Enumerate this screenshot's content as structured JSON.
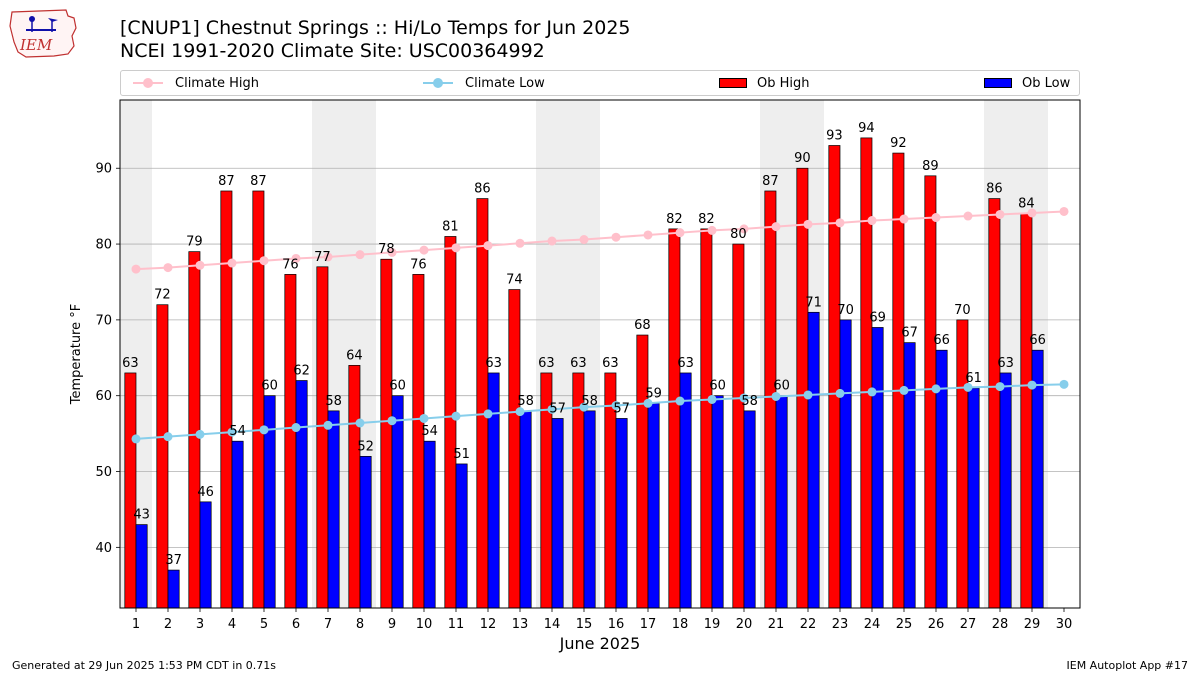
{
  "header": {
    "logo_text": "IEM",
    "title_line1": "[CNUP1] Chestnut Springs :: Hi/Lo Temps for Jun 2025",
    "title_line2": "NCEI 1991-2020 Climate Site: USC00364992"
  },
  "footer": {
    "generated": "Generated at 29 Jun 2025 1:53 PM CDT in 0.71s",
    "app": "IEM Autoplot App #17"
  },
  "colors": {
    "climate_high": "#ffc0cb",
    "climate_low": "#87ceeb",
    "ob_high": "#ff0000",
    "ob_low": "#0000ff",
    "weekend_shade": "#eeeeee",
    "grid": "#b0b0b0"
  },
  "chart_data": {
    "type": "bar",
    "xlabel": "June 2025",
    "ylabel": "Temperature °F",
    "ylim": [
      32,
      99
    ],
    "yticks": [
      40,
      50,
      60,
      70,
      80,
      90
    ],
    "grid": "horizontal",
    "legend_position": "top",
    "days": [
      1,
      2,
      3,
      4,
      5,
      6,
      7,
      8,
      9,
      10,
      11,
      12,
      13,
      14,
      15,
      16,
      17,
      18,
      19,
      20,
      21,
      22,
      23,
      24,
      25,
      26,
      27,
      28,
      29,
      30
    ],
    "shaded_day_ranges": [
      [
        1,
        1
      ],
      [
        7,
        8
      ],
      [
        14,
        15
      ],
      [
        21,
        22
      ],
      [
        28,
        29
      ]
    ],
    "series": [
      {
        "name": "Climate High",
        "kind": "line",
        "color": "#ffc0cb",
        "values": [
          76.7,
          76.9,
          77.2,
          77.5,
          77.8,
          78.1,
          78.3,
          78.6,
          78.9,
          79.2,
          79.5,
          79.8,
          80.1,
          80.4,
          80.6,
          80.9,
          81.2,
          81.5,
          81.8,
          82.0,
          82.3,
          82.6,
          82.8,
          83.1,
          83.3,
          83.5,
          83.7,
          83.9,
          84.1,
          84.3
        ]
      },
      {
        "name": "Climate Low",
        "kind": "line",
        "color": "#87ceeb",
        "values": [
          54.3,
          54.6,
          54.9,
          55.2,
          55.5,
          55.8,
          56.1,
          56.4,
          56.7,
          57.0,
          57.3,
          57.6,
          57.9,
          58.2,
          58.5,
          58.7,
          59.0,
          59.3,
          59.5,
          59.7,
          59.9,
          60.1,
          60.3,
          60.5,
          60.7,
          60.9,
          61.1,
          61.2,
          61.4,
          61.5
        ]
      },
      {
        "name": "Ob High",
        "kind": "bar",
        "color": "#ff0000",
        "values": [
          63,
          72,
          79,
          87,
          87,
          76,
          77,
          64,
          78,
          76,
          81,
          86,
          74,
          63,
          63,
          63,
          68,
          82,
          82,
          80,
          87,
          90,
          93,
          94,
          92,
          89,
          70,
          86,
          84
        ]
      },
      {
        "name": "Ob Low",
        "kind": "bar",
        "color": "#0000ff",
        "values": [
          43,
          37,
          46,
          54,
          60,
          62,
          58,
          52,
          60,
          54,
          51,
          63,
          58,
          57,
          58,
          57,
          59,
          63,
          60,
          58,
          60,
          71,
          70,
          69,
          67,
          66,
          61,
          63,
          66
        ]
      }
    ]
  }
}
